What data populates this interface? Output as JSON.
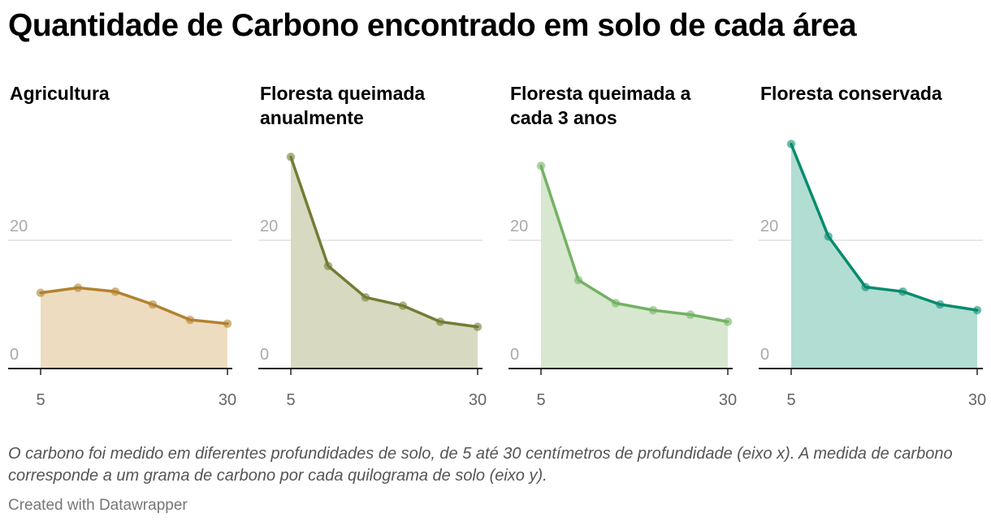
{
  "title": "Quantidade de Carbono encontrado em solo de cada área",
  "caption": "O carbono foi medido em diferentes profundidades de solo, de 5 até 30 centímetros de profundidade (eixo x). A medida de carbono corresponde a um grama de carbono por cada quilograma de solo (eixo y).",
  "credit": "Created with Datawrapper",
  "chart_data": [
    {
      "type": "area",
      "title": "Agricultura",
      "color": "#b2822f",
      "fill": "#eddcc0",
      "x": [
        5,
        10,
        15,
        20,
        25,
        30
      ],
      "values": [
        11.8,
        12.6,
        12.0,
        10.0,
        7.6,
        7.0
      ],
      "xticks": [
        "5",
        "30"
      ],
      "yticks": [
        "0",
        "20"
      ],
      "xlim": [
        5,
        30
      ],
      "ylim": [
        0,
        36
      ]
    },
    {
      "type": "area",
      "title": "Floresta queimada anualmente",
      "color": "#737c34",
      "fill": "#d8d9c1",
      "x": [
        5,
        10,
        15,
        20,
        25,
        30
      ],
      "values": [
        33.0,
        16.0,
        11.1,
        9.8,
        7.3,
        6.5
      ],
      "xticks": [
        "5",
        "30"
      ],
      "yticks": [
        "0",
        "20"
      ],
      "xlim": [
        5,
        30
      ],
      "ylim": [
        0,
        36
      ]
    },
    {
      "type": "area",
      "title": "Floresta queimada a cada 3 anos",
      "color": "#73b264",
      "fill": "#d8e8d0",
      "x": [
        5,
        10,
        15,
        20,
        25,
        30
      ],
      "values": [
        31.6,
        13.8,
        10.2,
        9.1,
        8.4,
        7.3
      ],
      "xticks": [
        "5",
        "30"
      ],
      "yticks": [
        "0",
        "20"
      ],
      "xlim": [
        5,
        30
      ],
      "ylim": [
        0,
        36
      ]
    },
    {
      "type": "area",
      "title": "Floresta conservada",
      "color": "#078b6e",
      "fill": "#b2ddd2",
      "x": [
        5,
        10,
        15,
        20,
        25,
        30
      ],
      "values": [
        35.0,
        20.6,
        12.7,
        12.0,
        10.0,
        9.1
      ],
      "xticks": [
        "5",
        "30"
      ],
      "yticks": [
        "0",
        "20"
      ],
      "xlim": [
        5,
        30
      ],
      "ylim": [
        0,
        36
      ]
    }
  ]
}
